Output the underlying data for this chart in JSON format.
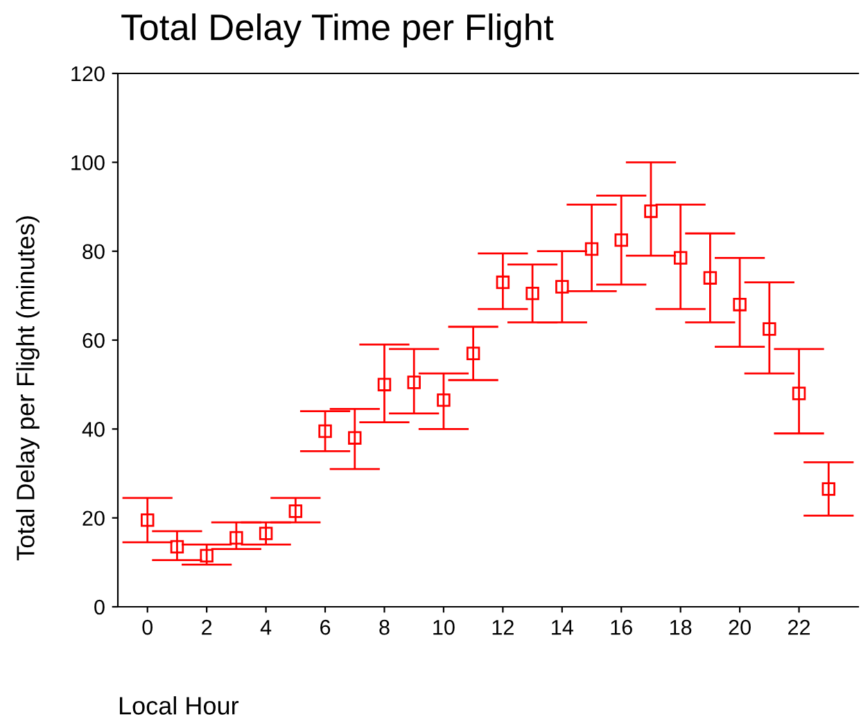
{
  "chart_data": {
    "type": "scatter",
    "title": "Total Delay Time per Flight",
    "xlabel": "Local Hour",
    "ylabel": "Total Delay per Flight (minutes)",
    "x": [
      0,
      1,
      2,
      3,
      4,
      5,
      6,
      7,
      8,
      9,
      10,
      11,
      12,
      13,
      14,
      15,
      16,
      17,
      18,
      19,
      20,
      21,
      22,
      23
    ],
    "series": [
      {
        "color": "#ff0000",
        "values": [
          19.5,
          13.5,
          11.5,
          15.5,
          16.5,
          21.5,
          39.5,
          38,
          50,
          50.5,
          46.5,
          57,
          73,
          70.5,
          72,
          80.5,
          82.5,
          89,
          78.5,
          74,
          68,
          62.5,
          48,
          26.5
        ],
        "errors": [
          [
            14.5,
            24.5
          ],
          [
            10.5,
            17
          ],
          [
            9.5,
            14
          ],
          [
            13,
            19
          ],
          [
            14,
            19
          ],
          [
            19,
            24.5
          ],
          [
            35,
            44
          ],
          [
            31,
            44.5
          ],
          [
            41.5,
            59
          ],
          [
            43.5,
            58
          ],
          [
            40,
            52.5
          ],
          [
            51,
            63
          ],
          [
            67,
            79.5
          ],
          [
            64,
            77
          ],
          [
            64,
            80
          ],
          [
            71,
            90.5
          ],
          [
            72.5,
            92.5
          ],
          [
            79,
            100
          ],
          [
            67,
            90.5
          ],
          [
            64,
            84
          ],
          [
            58.5,
            78.5
          ],
          [
            52.5,
            73
          ],
          [
            39,
            58
          ],
          [
            20.5,
            32.5
          ]
        ]
      }
    ],
    "marker": "square",
    "xlim": [
      -1,
      24
    ],
    "ylim": [
      0,
      120
    ],
    "xticks": [
      0,
      2,
      4,
      6,
      8,
      10,
      12,
      14,
      16,
      18,
      20,
      22
    ],
    "yticks": [
      0,
      20,
      40,
      60,
      80,
      100,
      120
    ],
    "grid": false,
    "legend": false
  }
}
